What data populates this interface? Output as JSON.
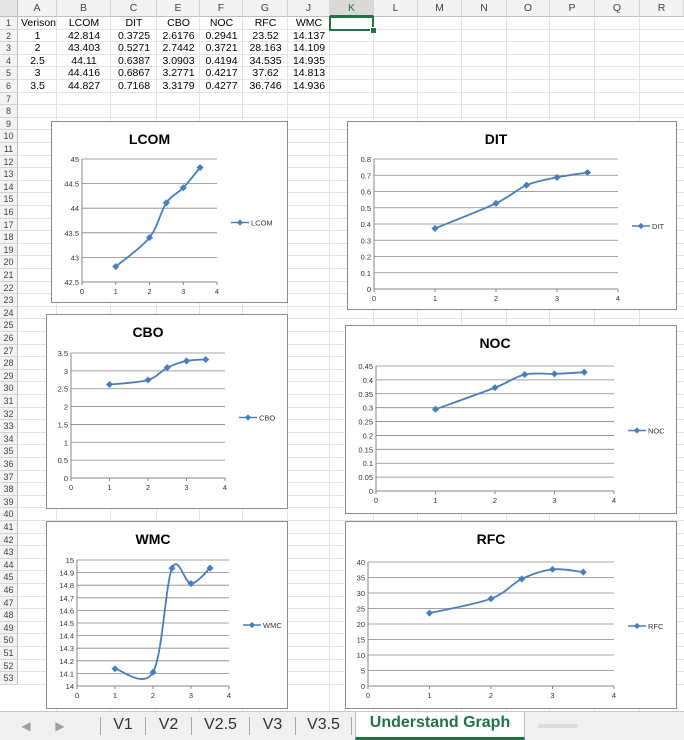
{
  "columns": [
    "A",
    "B",
    "C",
    "E",
    "F",
    "G",
    "J",
    "K",
    "L",
    "M",
    "N",
    "O",
    "P",
    "Q",
    "R"
  ],
  "selected_column": "K",
  "rows": [
    "1",
    "2",
    "3",
    "4",
    "5",
    "6",
    "7",
    "8",
    "9",
    "10",
    "11",
    "12",
    "13",
    "14",
    "15",
    "16",
    "17",
    "18",
    "19",
    "20",
    "21",
    "22",
    "23",
    "24",
    "25",
    "26",
    "27",
    "28",
    "29",
    "30",
    "31",
    "32",
    "33",
    "34",
    "35",
    "36",
    "37",
    "38",
    "39",
    "40",
    "41",
    "42",
    "43",
    "44",
    "45",
    "46",
    "47",
    "48",
    "49",
    "50",
    "51",
    "52",
    "53"
  ],
  "table": {
    "headers": [
      "Verison",
      "LCOM",
      "DIT",
      "CBO",
      "NOC",
      "RFC",
      "WMC"
    ],
    "rows": [
      [
        "1",
        "42.814",
        "0.3725",
        "2.6176",
        "0.2941",
        "23.52",
        "14.137"
      ],
      [
        "2",
        "43.403",
        "0.5271",
        "2.7442",
        "0.3721",
        "28.163",
        "14.109"
      ],
      [
        "2.5",
        "44.11",
        "0.6387",
        "3.0903",
        "0.4194",
        "34.535",
        "14.935"
      ],
      [
        "3",
        "44.416",
        "0.6867",
        "3.2771",
        "0.4217",
        "37.62",
        "14.813"
      ],
      [
        "3.5",
        "44.827",
        "0.7168",
        "3.3179",
        "0.4277",
        "36.746",
        "14.936"
      ]
    ]
  },
  "chart_data": [
    {
      "id": "lcom",
      "type": "line",
      "title": "LCOM",
      "x": [
        1,
        2,
        2.5,
        3,
        3.5
      ],
      "series": [
        {
          "name": "LCOM",
          "values": [
            42.814,
            43.403,
            44.11,
            44.416,
            44.827
          ]
        }
      ],
      "xlim": [
        0,
        4
      ],
      "ylim": [
        42.5,
        45
      ],
      "yticks": [
        "42.5",
        "43",
        "43.5",
        "44",
        "44.5",
        "45"
      ],
      "xticks": [
        "0",
        "1",
        "2",
        "3",
        "4"
      ],
      "grid": true,
      "legend": "right",
      "color": "#4a7ebb"
    },
    {
      "id": "dit",
      "type": "line",
      "title": "DIT",
      "x": [
        1,
        2,
        2.5,
        3,
        3.5
      ],
      "series": [
        {
          "name": "DIT",
          "values": [
            0.3725,
            0.5271,
            0.6387,
            0.6867,
            0.7168
          ]
        }
      ],
      "xlim": [
        0,
        4
      ],
      "ylim": [
        0,
        0.8
      ],
      "yticks": [
        "0",
        "0.1",
        "0.2",
        "0.3",
        "0.4",
        "0.5",
        "0.6",
        "0.7",
        "0.8"
      ],
      "xticks": [
        "0",
        "1",
        "2",
        "3",
        "4"
      ],
      "grid": true,
      "legend": "right",
      "color": "#4a7ebb"
    },
    {
      "id": "cbo",
      "type": "line",
      "title": "CBO",
      "x": [
        1,
        2,
        2.5,
        3,
        3.5
      ],
      "series": [
        {
          "name": "CBO",
          "values": [
            2.6176,
            2.7442,
            3.0903,
            3.2771,
            3.3179
          ]
        }
      ],
      "xlim": [
        0,
        4
      ],
      "ylim": [
        0,
        3.5
      ],
      "yticks": [
        "0",
        "0.5",
        "1",
        "1.5",
        "2",
        "2.5",
        "3",
        "3.5"
      ],
      "xticks": [
        "0",
        "1",
        "2",
        "3",
        "4"
      ],
      "grid": true,
      "legend": "right",
      "color": "#4a7ebb"
    },
    {
      "id": "noc",
      "type": "line",
      "title": "NOC",
      "x": [
        1,
        2,
        2.5,
        3,
        3.5
      ],
      "series": [
        {
          "name": "NOC",
          "values": [
            0.2941,
            0.3721,
            0.4194,
            0.4217,
            0.4277
          ]
        }
      ],
      "xlim": [
        0,
        4
      ],
      "ylim": [
        0,
        0.45
      ],
      "yticks": [
        "0",
        "0.05",
        "0.1",
        "0.15",
        "0.2",
        "0.25",
        "0.3",
        "0.35",
        "0.4",
        "0.45"
      ],
      "xticks": [
        "0",
        "1",
        "2",
        "3",
        "4"
      ],
      "grid": true,
      "legend": "right",
      "color": "#4a7ebb"
    },
    {
      "id": "wmc",
      "type": "line",
      "title": "WMC",
      "x": [
        1,
        2,
        2.5,
        3,
        3.5
      ],
      "series": [
        {
          "name": "WMC",
          "values": [
            14.137,
            14.109,
            14.935,
            14.813,
            14.936
          ]
        }
      ],
      "xlim": [
        0,
        4
      ],
      "ylim": [
        14,
        15
      ],
      "yticks": [
        "14",
        "14.1",
        "14.2",
        "14.3",
        "14.4",
        "14.5",
        "14.6",
        "14.7",
        "14.8",
        "14.9",
        "15"
      ],
      "xticks": [
        "0",
        "1",
        "2",
        "3",
        "4"
      ],
      "grid": true,
      "legend": "right",
      "color": "#4a7ebb"
    },
    {
      "id": "rfc",
      "type": "line",
      "title": "RFC",
      "x": [
        1,
        2,
        2.5,
        3,
        3.5
      ],
      "series": [
        {
          "name": "RFC",
          "values": [
            23.52,
            28.163,
            34.535,
            37.62,
            36.746
          ]
        }
      ],
      "xlim": [
        0,
        4
      ],
      "ylim": [
        0,
        40
      ],
      "yticks": [
        "0",
        "5",
        "10",
        "15",
        "20",
        "25",
        "30",
        "35",
        "40"
      ],
      "xticks": [
        "0",
        "1",
        "2",
        "3",
        "4"
      ],
      "grid": true,
      "legend": "right",
      "color": "#4a7ebb"
    }
  ],
  "tabs": [
    {
      "label": "V1",
      "active": false
    },
    {
      "label": "V2",
      "active": false
    },
    {
      "label": "V2.5",
      "active": false
    },
    {
      "label": "V3",
      "active": false
    },
    {
      "label": "V3.5",
      "active": false
    },
    {
      "label": "Understand Graph",
      "active": true
    }
  ],
  "colors": {
    "accent": "#217346",
    "series": "#4a7ebb",
    "grid": "#868686"
  }
}
